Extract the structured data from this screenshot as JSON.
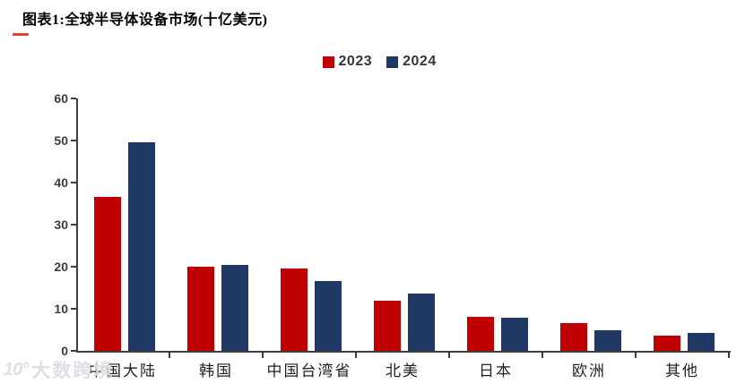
{
  "title": "图表1:全球半导体设备市场(十亿美元)",
  "colors": {
    "red_2023": "#c00000",
    "navy_2024": "#1f3864",
    "axis": "#3f3f3f",
    "title_dash": "#e04038",
    "watermark": "#dfdfe4"
  },
  "legend": {
    "items": [
      {
        "label": "2023",
        "color": "#c00000"
      },
      {
        "label": "2024",
        "color": "#1f3864"
      }
    ]
  },
  "chart_data": {
    "type": "bar",
    "title": "全球半导体设备市场(十亿美元)",
    "categories": [
      "中国大陆",
      "韩国",
      "中国台湾省",
      "北美",
      "日本",
      "欧洲",
      "其他"
    ],
    "series": [
      {
        "name": "2023",
        "color": "#c00000",
        "values": [
          36.5,
          20,
          19.5,
          12,
          8,
          6.5,
          3.7
        ]
      },
      {
        "name": "2024",
        "color": "#1f3864",
        "values": [
          49.5,
          20.5,
          16.5,
          13.6,
          7.8,
          5,
          4.3
        ]
      }
    ],
    "xlabel": "",
    "ylabel": "",
    "ylim": [
      0,
      60
    ],
    "yticks": [
      0,
      10,
      20,
      30,
      40,
      50,
      60
    ],
    "grid": false,
    "legend_position": "top-center"
  },
  "watermark": {
    "logo": "10°",
    "text": "大数跨境"
  }
}
